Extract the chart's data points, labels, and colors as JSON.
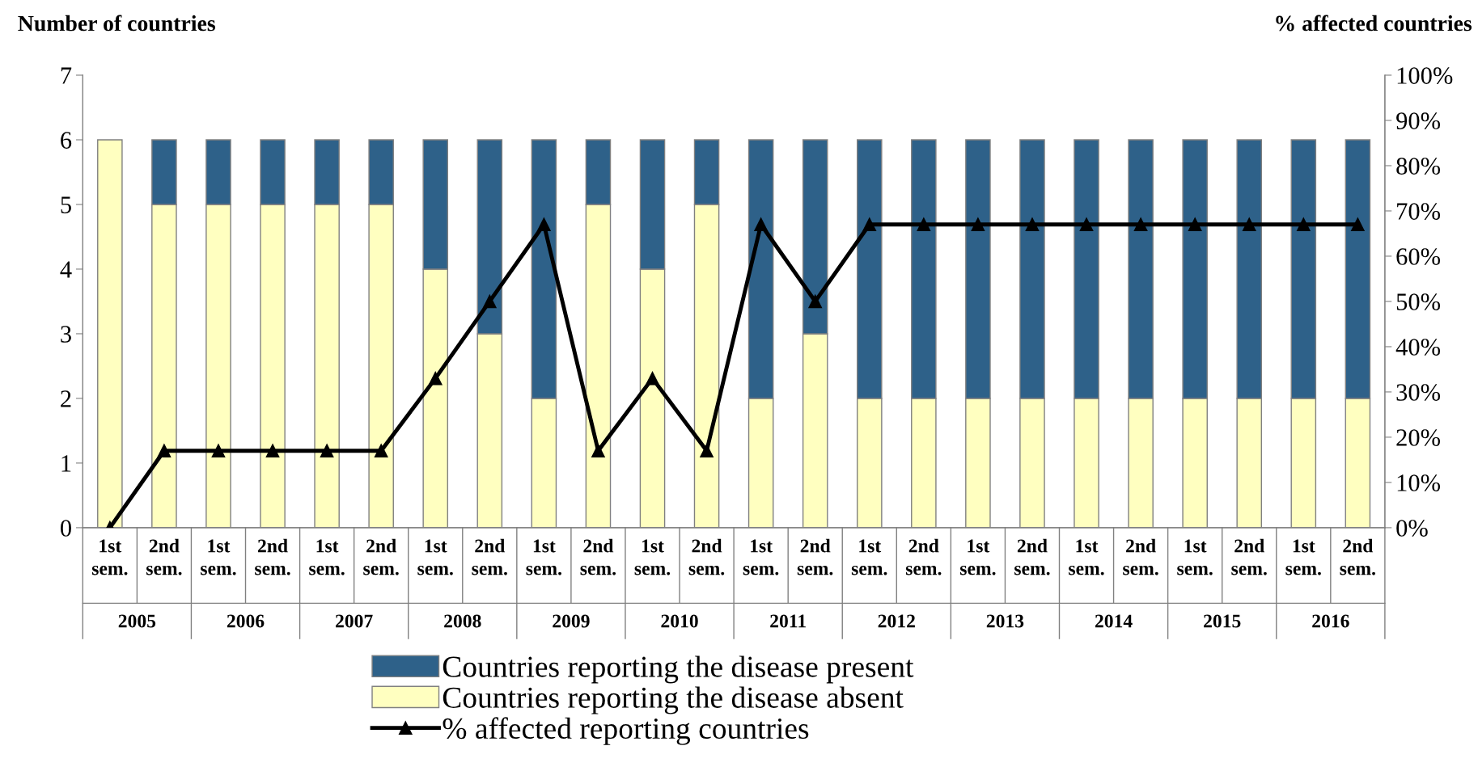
{
  "chart_data": {
    "type": "bar",
    "stacked": true,
    "ylabel": "Number of countries",
    "y2label": "% affected countries",
    "categories": [
      "1st\nsem.",
      "2nd\nsem.",
      "1st\nsem.",
      "2nd\nsem.",
      "1st\nsem.",
      "2nd\nsem.",
      "1st\nsem.",
      "2nd\nsem.",
      "1st\nsem.",
      "2nd\nsem.",
      "1st\nsem.",
      "2nd\nsem.",
      "1st\nsem.",
      "2nd\nsem.",
      "1st\nsem.",
      "2nd\nsem.",
      "1st\nsem.",
      "2nd\nsem.",
      "1st\nsem.",
      "2nd\nsem.",
      "1st\nsem.",
      "2nd\nsem.",
      "1st\nsem.",
      "2nd\nsem."
    ],
    "series": [
      {
        "name": "Countries reporting the disease absent",
        "color": "#ffffc0",
        "values": [
          6,
          5,
          5,
          5,
          5,
          5,
          4,
          3,
          2,
          5,
          4,
          5,
          2,
          3,
          2,
          2,
          2,
          2,
          2,
          2,
          2,
          2,
          2,
          2
        ]
      },
      {
        "name": "Countries reporting the disease present",
        "color": "#2e6189",
        "values": [
          0,
          1,
          1,
          1,
          1,
          1,
          2,
          3,
          4,
          1,
          2,
          1,
          4,
          3,
          4,
          4,
          4,
          4,
          4,
          4,
          4,
          4,
          4,
          4
        ]
      },
      {
        "name": "% affected reporting countries",
        "type": "line",
        "axis": "y2",
        "color": "#000000",
        "marker": "triangle",
        "values": [
          0,
          17,
          17,
          17,
          17,
          17,
          33,
          50,
          67,
          17,
          33,
          17,
          67,
          50,
          67,
          67,
          67,
          67,
          67,
          67,
          67,
          67,
          67,
          67
        ]
      }
    ],
    "ylim": [
      0,
      7
    ],
    "yticks": [
      0,
      1,
      2,
      3,
      4,
      5,
      6,
      7
    ],
    "y2lim": [
      0,
      100
    ],
    "y2ticks": [
      {
        "value": 0,
        "label": "0%"
      },
      {
        "value": 10,
        "label": "10%"
      },
      {
        "value": 20,
        "label": "20%"
      },
      {
        "value": 30,
        "label": "30%"
      },
      {
        "value": 40,
        "label": "40%"
      },
      {
        "value": 50,
        "label": "50%"
      },
      {
        "value": 60,
        "label": "60%"
      },
      {
        "value": 70,
        "label": "70%"
      },
      {
        "value": 80,
        "label": "80%"
      },
      {
        "value": 90,
        "label": "90%"
      },
      {
        "value": 100,
        "label": "100%"
      }
    ],
    "annotations": [
      "2005",
      "2006",
      "2007",
      "2008",
      "2009",
      "2010",
      "2011",
      "2012",
      "2013",
      "2014",
      "2015",
      "2016"
    ],
    "grid": false,
    "legend": "bottom"
  }
}
